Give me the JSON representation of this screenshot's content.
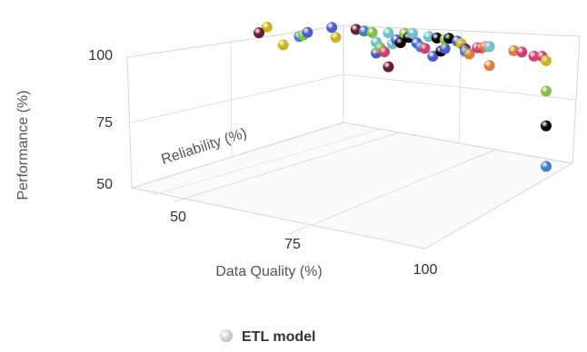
{
  "chart_data": {
    "type": "scatter",
    "title": "",
    "xlabel": "Data Quality (%)",
    "ylabel": "Performance (%)",
    "zlabel": "Reliability (%)",
    "x_ticks": [
      "50",
      "75",
      "100"
    ],
    "y_ticks": [
      "50",
      "75",
      "100"
    ],
    "legend": {
      "placement": "bottom",
      "items": [
        {
          "label": "ETL model",
          "color": "#c8c8c8"
        }
      ]
    },
    "grid": true,
    "colors": [
      "#3f7fd0",
      "#000000",
      "#7fc044",
      "#c9b521",
      "#e07d33",
      "#d2416b",
      "#4a5ccc",
      "#6cc0c8",
      "#6a1a2e"
    ],
    "series": [
      {
        "name": "ETL model",
        "points": [
          {
            "x": 32,
            "y": 104.5,
            "color": "#c9b521"
          },
          {
            "x": 30,
            "y": 102.5,
            "color": "#6a1a2e"
          },
          {
            "x": 36,
            "y": 98.5,
            "color": "#c9b521"
          },
          {
            "x": 40,
            "y": 101.5,
            "color": "#3f7fd0"
          },
          {
            "x": 41,
            "y": 102,
            "color": "#7fc044"
          },
          {
            "x": 42,
            "y": 103,
            "color": "#4a5ccc"
          },
          {
            "x": 48,
            "y": 105,
            "color": "#4a5ccc"
          },
          {
            "x": 49,
            "y": 101.5,
            "color": "#c9b521"
          },
          {
            "x": 54,
            "y": 104.5,
            "color": "#6a1a2e"
          },
          {
            "x": 56,
            "y": 104,
            "color": "#3f7fd0"
          },
          {
            "x": 58,
            "y": 103.5,
            "color": "#7fc044"
          },
          {
            "x": 59,
            "y": 100,
            "color": "#6cc0c8"
          },
          {
            "x": 59,
            "y": 96,
            "color": "#4a5ccc"
          },
          {
            "x": 60,
            "y": 98,
            "color": "#7fc044"
          },
          {
            "x": 61,
            "y": 96.5,
            "color": "#d2416b"
          },
          {
            "x": 62,
            "y": 91,
            "color": "#6a1a2e"
          },
          {
            "x": 62,
            "y": 103.5,
            "color": "#6cc0c8"
          },
          {
            "x": 63,
            "y": 99.5,
            "color": "#6cc0c8"
          },
          {
            "x": 64,
            "y": 101,
            "color": "#4a5ccc"
          },
          {
            "x": 65,
            "y": 100,
            "color": "#000000"
          },
          {
            "x": 66,
            "y": 103.5,
            "color": "#7fc044"
          },
          {
            "x": 67,
            "y": 102,
            "color": "#000000"
          },
          {
            "x": 68,
            "y": 103.5,
            "color": "#6cc0c8"
          },
          {
            "x": 69,
            "y": 100,
            "color": "#4a5ccc"
          },
          {
            "x": 70,
            "y": 98.5,
            "color": "#3f7fd0"
          },
          {
            "x": 71,
            "y": 98,
            "color": "#d2416b"
          },
          {
            "x": 72,
            "y": 102.5,
            "color": "#6cc0c8"
          },
          {
            "x": 73,
            "y": 95,
            "color": "#4a5ccc"
          },
          {
            "x": 74,
            "y": 102,
            "color": "#000000"
          },
          {
            "x": 75,
            "y": 97,
            "color": "#000000"
          },
          {
            "x": 76,
            "y": 98,
            "color": "#4a5ccc"
          },
          {
            "x": 76,
            "y": 101.5,
            "color": "#7fc044"
          },
          {
            "x": 77,
            "y": 102,
            "color": "#000000"
          },
          {
            "x": 79,
            "y": 101,
            "color": "#4a5ccc"
          },
          {
            "x": 80,
            "y": 100,
            "color": "#c9b521"
          },
          {
            "x": 81,
            "y": 98,
            "color": "#6a1a2e"
          },
          {
            "x": 81,
            "y": 97,
            "color": "#3f7fd0"
          },
          {
            "x": 82,
            "y": 96,
            "color": "#e07d33"
          },
          {
            "x": 84,
            "y": 98.5,
            "color": "#d2416b"
          },
          {
            "x": 85,
            "y": 98.5,
            "color": "#d2416b"
          },
          {
            "x": 86,
            "y": 99,
            "color": "#e07d33"
          },
          {
            "x": 87,
            "y": 99,
            "color": "#6cc0c8"
          },
          {
            "x": 87,
            "y": 91.5,
            "color": "#e07d33"
          },
          {
            "x": 93,
            "y": 97.5,
            "color": "#e07d33"
          },
          {
            "x": 95,
            "y": 97,
            "color": "#d2416b"
          },
          {
            "x": 98,
            "y": 97,
            "color": "#d2416b"
          },
          {
            "x": 100,
            "y": 97,
            "color": "#d2416b"
          },
          {
            "x": 101,
            "y": 95.5,
            "color": "#c9b521"
          },
          {
            "x": 101,
            "y": 85,
            "color": "#7fc044"
          },
          {
            "x": 101,
            "y": 73,
            "color": "#000000"
          },
          {
            "x": 101,
            "y": 59,
            "color": "#3f7fd0"
          }
        ]
      }
    ]
  }
}
